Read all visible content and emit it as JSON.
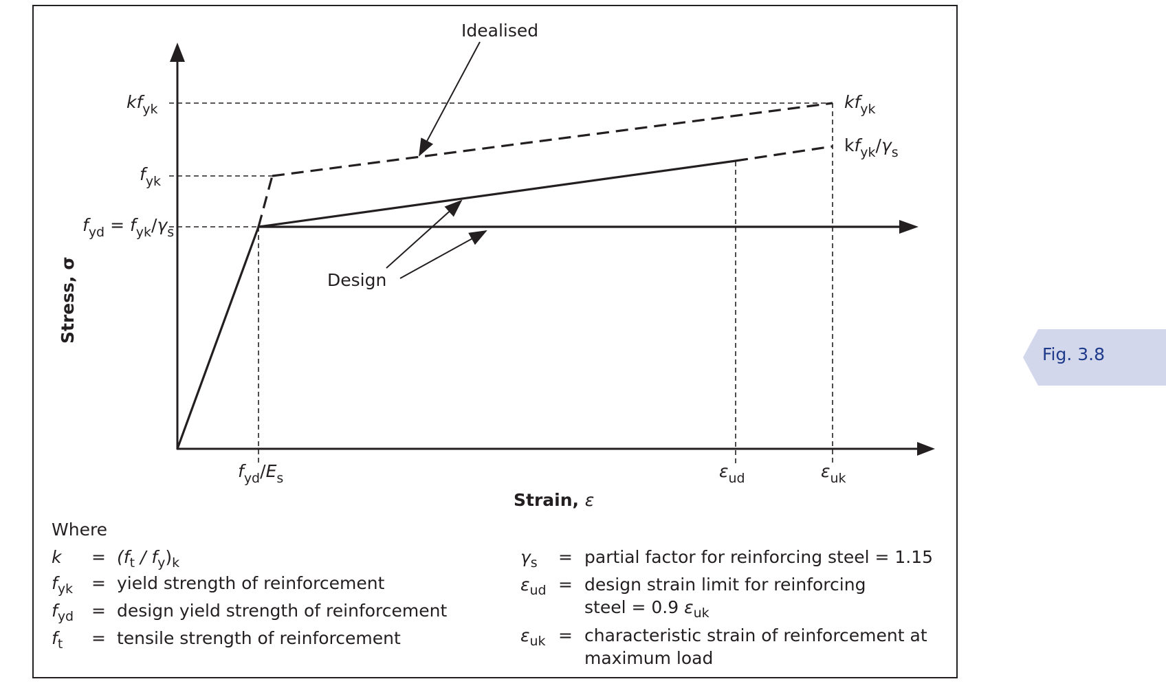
{
  "figure": {
    "tab_label": "Fig. 3.8",
    "y_axis_title": "Stress, σ",
    "x_axis_title_text": "Strain, ",
    "x_axis_title_symbol": "ε",
    "annotations": {
      "idealised": "Idealised",
      "design": "Design"
    },
    "y_labels": {
      "kfyk": {
        "k": "k",
        "f": "f",
        "sub": "yk"
      },
      "fyk": {
        "f": "f",
        "sub": "yk"
      },
      "fyd": {
        "f1": "f",
        "sub1": "yd",
        "eq": " = ",
        "f2": "f",
        "sub2": "yk",
        "slash": "/",
        "g": "γ",
        "sub3": "s"
      }
    },
    "right_labels": {
      "kfyk": {
        "k": "k",
        "f": "f",
        "sub": "yk"
      },
      "kfyk_gs": {
        "k": "k",
        "f": "f",
        "sub": "yk",
        "slash": "/",
        "g": "γ",
        "sub2": "s"
      }
    },
    "x_labels": {
      "fyd_Es": {
        "f": "f",
        "sub": "yd",
        "slash": "/",
        "E": "E",
        "sub2": "s"
      },
      "eud": {
        "e": "ε",
        "sub": "ud"
      },
      "euk": {
        "e": "ε",
        "sub": "uk"
      }
    },
    "colors": {
      "line": "#231f20",
      "tab_bg": "#d3d7ec",
      "tab_text": "#1f3a8a"
    }
  },
  "legend": {
    "heading": "Where",
    "equals": "=",
    "left": [
      {
        "sym": "k",
        "sym_sub": "",
        "def_parts": [
          "(f",
          "t",
          " / f",
          "y",
          ")",
          "k"
        ]
      },
      {
        "sym": "f",
        "sym_sub": "yk",
        "def": "yield strength of reinforcement"
      },
      {
        "sym": "f",
        "sym_sub": "yd",
        "def": "design yield strength of reinforcement"
      },
      {
        "sym": "f",
        "sym_sub": "t",
        "def": "tensile strength of reinforcement"
      }
    ],
    "right": [
      {
        "sym": "γ",
        "sym_sub": "s",
        "def": "partial factor for reinforcing steel = 1.15"
      },
      {
        "sym": "ε",
        "sym_sub": "ud",
        "def": "design strain limit for reinforcing",
        "def2_text": "steel = 0.9 ",
        "def2_sym": "ε",
        "def2_sub": "uk"
      },
      {
        "sym": "ε",
        "sym_sub": "uk",
        "def": "characteristic strain of reinforcement at",
        "def2_text": "maximum load"
      }
    ]
  }
}
